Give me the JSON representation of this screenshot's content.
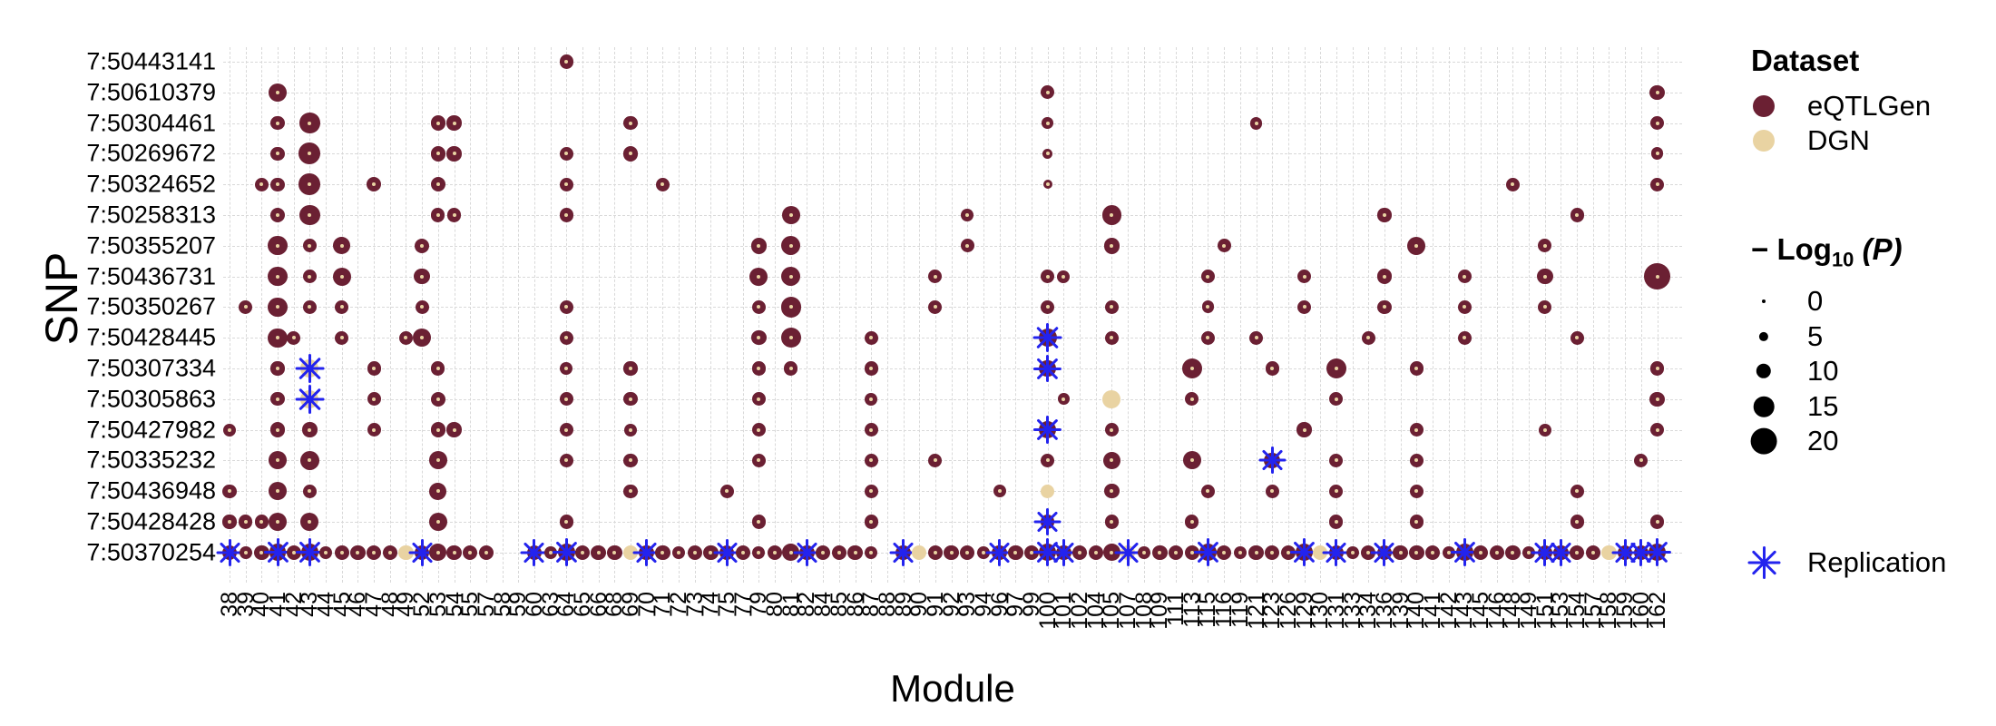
{
  "axes": {
    "x_title": "Module",
    "y_title": "SNP"
  },
  "legend": {
    "dataset": {
      "title": "Dataset",
      "items": [
        {
          "label": "eQTLGen",
          "color": "#6b2033"
        },
        {
          "label": "DGN",
          "color": "#e9d3a2"
        }
      ]
    },
    "size": {
      "title_minus": "− ",
      "title_log": "Log",
      "title_sub": "10",
      "title_p": "(P)",
      "values": [
        "0",
        "5",
        "10",
        "15",
        "20"
      ]
    },
    "replication_label": "Replication"
  },
  "colors": {
    "eqtlgen": "#6b2033",
    "dgn": "#e9d3a2",
    "replication": "#2323ee",
    "grid": "#d9d9d9",
    "center_dot": "#e9d3a2"
  },
  "chart_data": {
    "type": "scatter",
    "title": "",
    "xlabel": "Module",
    "ylabel": "SNP",
    "size_scale": {
      "label": "-Log10(P)",
      "breaks": [
        0,
        5,
        10,
        15,
        20
      ]
    },
    "modules": [
      "38",
      "39",
      "40",
      "41",
      "42",
      "43",
      "44",
      "45",
      "46",
      "47",
      "48",
      "49",
      "52",
      "53",
      "54",
      "55",
      "57",
      "58",
      "59",
      "60",
      "63",
      "64",
      "65",
      "66",
      "68",
      "69",
      "70",
      "71",
      "72",
      "73",
      "74",
      "75",
      "77",
      "79",
      "80",
      "81",
      "82",
      "84",
      "85",
      "86",
      "87",
      "88",
      "89",
      "90",
      "91",
      "92",
      "93",
      "94",
      "96",
      "97",
      "99",
      "100",
      "101",
      "102",
      "104",
      "105",
      "107",
      "108",
      "109",
      "111",
      "113",
      "115",
      "116",
      "119",
      "121",
      "123",
      "126",
      "129",
      "130",
      "131",
      "133",
      "134",
      "136",
      "139",
      "140",
      "141",
      "142",
      "143",
      "145",
      "146",
      "148",
      "149",
      "151",
      "153",
      "154",
      "157",
      "158",
      "159",
      "160",
      "162"
    ],
    "snps": [
      "7:50443141",
      "7:50610379",
      "7:50304461",
      "7:50269672",
      "7:50324652",
      "7:50258313",
      "7:50355207",
      "7:50436731",
      "7:50350267",
      "7:50428445",
      "7:50307334",
      "7:50305863",
      "7:50427982",
      "7:50335232",
      "7:50436948",
      "7:50428428",
      "7:50370254"
    ],
    "flag_key": {
      "d": "DGN dataset (tan)",
      "r": "replication star",
      "default": "eQTLGen (maroon)"
    },
    "rows": [
      {
        "snp": "7:50443141",
        "b": [
          [
            21,
            9
          ]
        ]
      },
      {
        "snp": "7:50610379",
        "b": [
          [
            3,
            13
          ],
          [
            51,
            9
          ],
          [
            89,
            10
          ]
        ]
      },
      {
        "snp": "7:50304461",
        "b": [
          [
            3,
            9
          ],
          [
            5,
            15
          ],
          [
            13,
            10
          ],
          [
            14,
            10
          ],
          [
            25,
            9
          ],
          [
            51,
            7
          ],
          [
            64,
            8
          ],
          [
            89,
            9
          ]
        ]
      },
      {
        "snp": "7:50269672",
        "b": [
          [
            3,
            9
          ],
          [
            5,
            16
          ],
          [
            13,
            10
          ],
          [
            14,
            10
          ],
          [
            21,
            9
          ],
          [
            25,
            10
          ],
          [
            51,
            6
          ],
          [
            89,
            8
          ]
        ]
      },
      {
        "snp": "7:50324652",
        "b": [
          [
            2,
            9
          ],
          [
            3,
            9
          ],
          [
            5,
            16
          ],
          [
            9,
            10
          ],
          [
            13,
            10
          ],
          [
            21,
            9
          ],
          [
            27,
            9
          ],
          [
            51,
            5
          ],
          [
            80,
            9
          ],
          [
            89,
            9
          ]
        ]
      },
      {
        "snp": "7:50258313",
        "b": [
          [
            3,
            10
          ],
          [
            5,
            15
          ],
          [
            13,
            9
          ],
          [
            14,
            9
          ],
          [
            21,
            9
          ],
          [
            35,
            13
          ],
          [
            46,
            8
          ],
          [
            55,
            14
          ],
          [
            72,
            9
          ],
          [
            84,
            9
          ]
        ]
      },
      {
        "snp": "7:50355207",
        "b": [
          [
            3,
            14
          ],
          [
            5,
            9
          ],
          [
            7,
            12
          ],
          [
            12,
            10
          ],
          [
            33,
            11
          ],
          [
            35,
            14
          ],
          [
            46,
            9
          ],
          [
            55,
            11
          ],
          [
            62,
            9
          ],
          [
            74,
            13
          ],
          [
            82,
            9
          ]
        ]
      },
      {
        "snp": "7:50436731",
        "b": [
          [
            3,
            14
          ],
          [
            5,
            9
          ],
          [
            7,
            13
          ],
          [
            12,
            11
          ],
          [
            33,
            13
          ],
          [
            35,
            14
          ],
          [
            44,
            9
          ],
          [
            51,
            9
          ],
          [
            52,
            8
          ],
          [
            61,
            9
          ],
          [
            67,
            9
          ],
          [
            72,
            10
          ],
          [
            77,
            9
          ],
          [
            82,
            11
          ],
          [
            89,
            20
          ]
        ]
      },
      {
        "snp": "7:50350267",
        "b": [
          [
            1,
            9
          ],
          [
            3,
            14
          ],
          [
            5,
            9
          ],
          [
            7,
            9
          ],
          [
            12,
            9
          ],
          [
            21,
            9
          ],
          [
            33,
            9
          ],
          [
            35,
            15
          ],
          [
            44,
            9
          ],
          [
            51,
            9
          ],
          [
            55,
            9
          ],
          [
            61,
            8
          ],
          [
            67,
            9
          ],
          [
            72,
            9
          ],
          [
            77,
            9
          ],
          [
            82,
            9
          ]
        ]
      },
      {
        "snp": "7:50428445",
        "b": [
          [
            3,
            14
          ],
          [
            4,
            9
          ],
          [
            7,
            9
          ],
          [
            11,
            9
          ],
          [
            12,
            13
          ],
          [
            21,
            9
          ],
          [
            33,
            10
          ],
          [
            35,
            15
          ],
          [
            40,
            9
          ],
          [
            51,
            13,
            "r"
          ],
          [
            55,
            9
          ],
          [
            61,
            9
          ],
          [
            64,
            9
          ],
          [
            71,
            9
          ],
          [
            77,
            9
          ],
          [
            84,
            9
          ]
        ]
      },
      {
        "snp": "7:50307334",
        "b": [
          [
            3,
            9
          ],
          [
            5,
            13,
            "dr"
          ],
          [
            9,
            9
          ],
          [
            13,
            9
          ],
          [
            21,
            8
          ],
          [
            25,
            9
          ],
          [
            33,
            9
          ],
          [
            35,
            9
          ],
          [
            40,
            9
          ],
          [
            51,
            12,
            "r"
          ],
          [
            60,
            15
          ],
          [
            65,
            9
          ],
          [
            69,
            15
          ],
          [
            74,
            9
          ],
          [
            89,
            9
          ]
        ]
      },
      {
        "snp": "7:50305863",
        "b": [
          [
            3,
            9
          ],
          [
            5,
            13,
            "dr"
          ],
          [
            9,
            9
          ],
          [
            13,
            10
          ],
          [
            21,
            9
          ],
          [
            25,
            9
          ],
          [
            33,
            9
          ],
          [
            40,
            8
          ],
          [
            52,
            7
          ],
          [
            55,
            13,
            "d"
          ],
          [
            60,
            9
          ],
          [
            69,
            9
          ],
          [
            89,
            10
          ]
        ]
      },
      {
        "snp": "7:50427982",
        "b": [
          [
            0,
            8
          ],
          [
            3,
            10
          ],
          [
            5,
            10
          ],
          [
            9,
            9
          ],
          [
            13,
            10
          ],
          [
            14,
            10
          ],
          [
            21,
            9
          ],
          [
            25,
            8
          ],
          [
            33,
            9
          ],
          [
            40,
            9
          ],
          [
            51,
            12,
            "r"
          ],
          [
            55,
            9
          ],
          [
            67,
            10
          ],
          [
            74,
            9
          ],
          [
            82,
            8
          ],
          [
            89,
            9
          ]
        ]
      },
      {
        "snp": "7:50335232",
        "b": [
          [
            3,
            13
          ],
          [
            5,
            14
          ],
          [
            13,
            13
          ],
          [
            21,
            9
          ],
          [
            25,
            9
          ],
          [
            33,
            9
          ],
          [
            40,
            9
          ],
          [
            44,
            9
          ],
          [
            51,
            9
          ],
          [
            55,
            12
          ],
          [
            60,
            13
          ],
          [
            65,
            11,
            "r"
          ],
          [
            69,
            9
          ],
          [
            74,
            9
          ],
          [
            88,
            9
          ]
        ]
      },
      {
        "snp": "7:50436948",
        "b": [
          [
            0,
            9
          ],
          [
            3,
            13
          ],
          [
            5,
            9
          ],
          [
            13,
            12
          ],
          [
            25,
            9
          ],
          [
            31,
            9
          ],
          [
            40,
            9
          ],
          [
            48,
            8
          ],
          [
            51,
            9,
            "d"
          ],
          [
            55,
            10
          ],
          [
            61,
            9
          ],
          [
            65,
            9
          ],
          [
            69,
            9
          ],
          [
            74,
            9
          ],
          [
            84,
            9
          ]
        ]
      },
      {
        "snp": "7:50428428",
        "b": [
          [
            0,
            9
          ],
          [
            1,
            9
          ],
          [
            2,
            9
          ],
          [
            3,
            13
          ],
          [
            5,
            13
          ],
          [
            13,
            13
          ],
          [
            21,
            9
          ],
          [
            33,
            9
          ],
          [
            40,
            9
          ],
          [
            51,
            9,
            "r"
          ],
          [
            55,
            9
          ],
          [
            60,
            9
          ],
          [
            69,
            9
          ],
          [
            74,
            9
          ],
          [
            84,
            9
          ],
          [
            89,
            9
          ]
        ]
      },
      {
        "snp": "7:50370254",
        "b": [
          [
            0,
            10,
            "r"
          ],
          [
            1,
            8
          ],
          [
            2,
            10
          ],
          [
            3,
            12,
            "r"
          ],
          [
            4,
            10
          ],
          [
            5,
            12,
            "r"
          ],
          [
            6,
            8
          ],
          [
            7,
            10
          ],
          [
            8,
            10
          ],
          [
            9,
            10
          ],
          [
            10,
            10
          ],
          [
            11,
            10,
            "d"
          ],
          [
            12,
            10,
            "r"
          ],
          [
            13,
            12
          ],
          [
            14,
            10
          ],
          [
            15,
            10
          ],
          [
            16,
            10
          ],
          [
            19,
            10,
            "r"
          ],
          [
            20,
            8
          ],
          [
            21,
            12,
            "r"
          ],
          [
            22,
            10
          ],
          [
            23,
            10
          ],
          [
            24,
            10
          ],
          [
            25,
            10,
            "d"
          ],
          [
            26,
            10,
            "r"
          ],
          [
            27,
            10
          ],
          [
            28,
            8
          ],
          [
            29,
            10
          ],
          [
            30,
            10
          ],
          [
            31,
            10,
            "r"
          ],
          [
            32,
            10
          ],
          [
            33,
            8
          ],
          [
            34,
            10
          ],
          [
            35,
            12
          ],
          [
            36,
            10,
            "r"
          ],
          [
            37,
            10
          ],
          [
            38,
            10
          ],
          [
            39,
            10
          ],
          [
            40,
            8
          ],
          [
            42,
            10,
            "r"
          ],
          [
            43,
            10,
            "d"
          ],
          [
            44,
            10
          ],
          [
            45,
            10
          ],
          [
            46,
            10
          ],
          [
            47,
            8
          ],
          [
            48,
            10,
            "r"
          ],
          [
            49,
            10
          ],
          [
            50,
            10
          ],
          [
            51,
            12,
            "r"
          ],
          [
            52,
            10,
            "r"
          ],
          [
            53,
            10
          ],
          [
            54,
            10
          ],
          [
            55,
            12
          ],
          [
            56,
            10,
            "dr"
          ],
          [
            57,
            8
          ],
          [
            58,
            10
          ],
          [
            59,
            10
          ],
          [
            60,
            10
          ],
          [
            61,
            12,
            "r"
          ],
          [
            62,
            10
          ],
          [
            63,
            8
          ],
          [
            64,
            10
          ],
          [
            65,
            10
          ],
          [
            66,
            10
          ],
          [
            67,
            12,
            "r"
          ],
          [
            68,
            10,
            "d"
          ],
          [
            69,
            10,
            "r"
          ],
          [
            70,
            8
          ],
          [
            71,
            10
          ],
          [
            72,
            10,
            "r"
          ],
          [
            73,
            10
          ],
          [
            74,
            10
          ],
          [
            75,
            10
          ],
          [
            76,
            8
          ],
          [
            77,
            12,
            "r"
          ],
          [
            78,
            10
          ],
          [
            79,
            10
          ],
          [
            80,
            10
          ],
          [
            81,
            8
          ],
          [
            82,
            10,
            "r"
          ],
          [
            83,
            10,
            "r"
          ],
          [
            84,
            10
          ],
          [
            85,
            10
          ],
          [
            86,
            10,
            "d"
          ],
          [
            87,
            10,
            "r"
          ],
          [
            88,
            10,
            "r"
          ],
          [
            89,
            12,
            "r"
          ]
        ]
      }
    ]
  }
}
